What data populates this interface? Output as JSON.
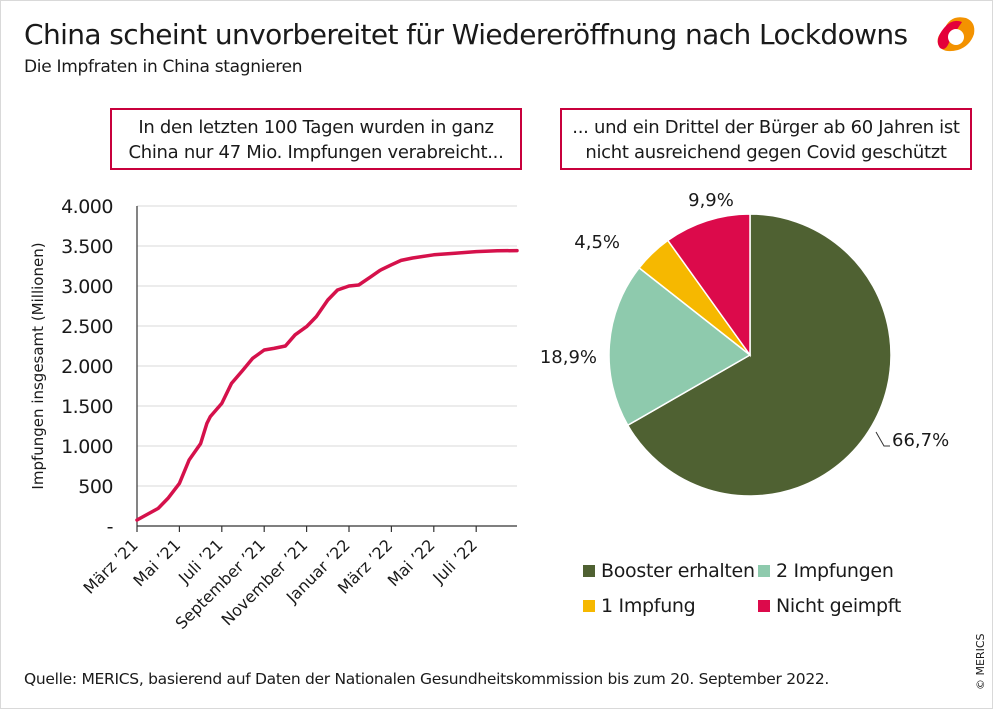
{
  "header": {
    "title": "China scheint unvorbereitet für Wiedereröffnung nach Lockdowns",
    "subtitle": "Die Impfraten in China stagnieren"
  },
  "logo": {
    "name": "merics-logo",
    "colors": [
      "#e4003a",
      "#f39200"
    ]
  },
  "callouts": {
    "left": [
      "In den letzten 100 Tagen wurden in ganz",
      "China nur 47 Mio. Impfungen verabreicht..."
    ],
    "right": [
      "... und ein Drittel der Bürger ab 60 Jahren ist",
      "nicht ausreichend gegen Covid geschützt"
    ]
  },
  "footer": {
    "source": "Quelle: MERICS, basierend auf Daten der Nationalen Gesundheitskommission bis zum 20. September 2022.",
    "copyright": "© MERICS"
  },
  "chart_data": [
    {
      "type": "line",
      "ylabel": "Impfungen insgesamt (Millionen)",
      "xlabel": "",
      "ylim": [
        0,
        4000
      ],
      "yticks": [
        0,
        500,
        1000,
        1500,
        2000,
        2500,
        3000,
        3500,
        4000
      ],
      "ytick_labels": [
        "-",
        "500",
        "1.000",
        "1.500",
        "2.000",
        "2.500",
        "3.000",
        "3.500",
        "4.000"
      ],
      "xlim": [
        "2021-03-01",
        "2022-09-20"
      ],
      "xticks": [
        "2021-03-01",
        "2021-05-01",
        "2021-07-01",
        "2021-09-01",
        "2021-11-01",
        "2022-01-01",
        "2022-03-01",
        "2022-05-01",
        "2022-07-01"
      ],
      "xtick_labels": [
        "März ’21",
        "Mai ’21",
        "Juli ’21",
        "September ’21",
        "November ’21",
        "Januar ’22",
        "März ’22",
        "Mai ’22",
        "Juli ’22"
      ],
      "grid": "horizontal",
      "color": "#d5114b",
      "series": [
        {
          "x": [
            "2021-03-01",
            "2021-04-01",
            "2021-04-15",
            "2021-05-01",
            "2021-05-15",
            "2021-06-01",
            "2021-06-10",
            "2021-06-15",
            "2021-07-01",
            "2021-07-15",
            "2021-08-01",
            "2021-08-15",
            "2021-09-01",
            "2021-09-15",
            "2021-10-01",
            "2021-10-15",
            "2021-11-01",
            "2021-11-15",
            "2021-12-01",
            "2021-12-15",
            "2022-01-01",
            "2022-01-15",
            "2022-02-01",
            "2022-02-15",
            "2022-03-01",
            "2022-03-15",
            "2022-04-01",
            "2022-05-01",
            "2022-06-01",
            "2022-07-01",
            "2022-08-01",
            "2022-09-20"
          ],
          "y": [
            75,
            220,
            345,
            533,
            825,
            1030,
            1283,
            1367,
            1533,
            1783,
            1950,
            2096,
            2200,
            2220,
            2250,
            2390,
            2492,
            2617,
            2825,
            2950,
            3000,
            3013,
            3110,
            3195,
            3265,
            3320,
            3350,
            3390,
            3410,
            3430,
            3440,
            3443
          ]
        }
      ]
    },
    {
      "type": "pie",
      "slices": [
        {
          "label": "Booster erhalten",
          "value": 66.7,
          "value_label": "66,7%",
          "color": "#4f6132"
        },
        {
          "label": "2 Impfungen",
          "value": 18.9,
          "value_label": "18,9%",
          "color": "#8ecaad"
        },
        {
          "label": "1 Impfung",
          "value": 4.5,
          "value_label": "4,5%",
          "color": "#f6b800"
        },
        {
          "label": "Nicht geimpft",
          "value": 9.9,
          "value_label": "9,9%",
          "color": "#dc0a4b"
        }
      ],
      "legend": "bottom"
    }
  ]
}
